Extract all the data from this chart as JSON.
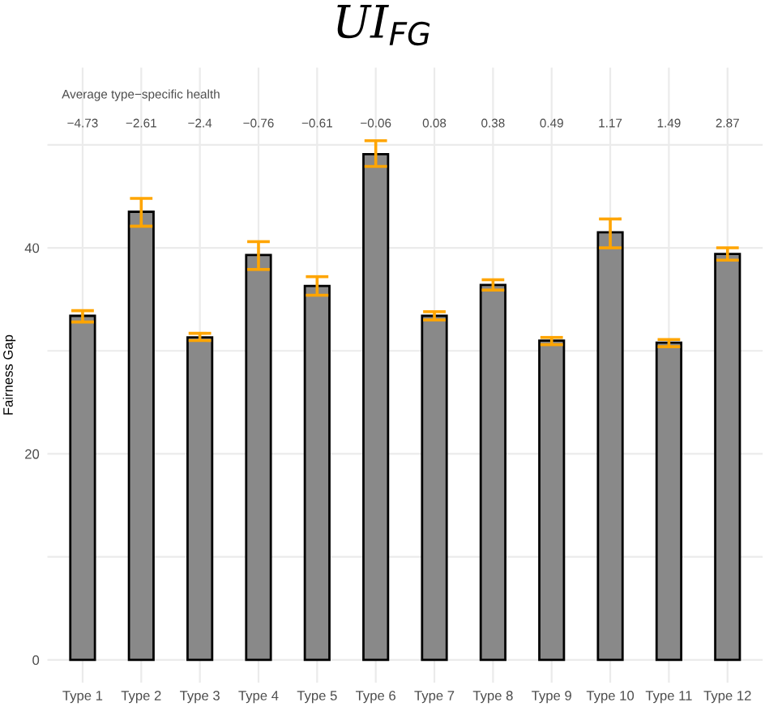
{
  "chart_data": {
    "type": "bar",
    "title": "UI$_{FG}$",
    "ylabel": "Fairness Gap",
    "categories": [
      "Type 1",
      "Type 2",
      "Type 3",
      "Type 4",
      "Type 5",
      "Type 6",
      "Type 7",
      "Type 8",
      "Type 9",
      "Type 10",
      "Type 11",
      "Type 12"
    ],
    "series": [
      {
        "color": "#898989",
        "values": [
          33.4,
          43.5,
          31.3,
          39.3,
          36.3,
          49.1,
          33.4,
          36.4,
          31.0,
          41.5,
          30.8,
          39.4
        ],
        "errors": [
          [
            32.8,
            33.9
          ],
          [
            42.1,
            44.8
          ],
          [
            31.0,
            31.7
          ],
          [
            37.9,
            40.6
          ],
          [
            35.4,
            37.2
          ],
          [
            47.9,
            50.4
          ],
          [
            33.0,
            33.8
          ],
          [
            35.9,
            36.9
          ],
          [
            30.6,
            31.3
          ],
          [
            40.0,
            42.8
          ],
          [
            30.4,
            31.1
          ],
          [
            38.8,
            40.0
          ]
        ]
      }
    ],
    "ylim": [
      -2.2,
      57.5
    ],
    "yticks": [
      0,
      {
        "value": 10,
        "label": null
      },
      20,
      {
        "value": 30,
        "label": null
      },
      40,
      {
        "value": 50,
        "label": null
      }
    ],
    "grid": true,
    "annotations": [
      "Average type−specific health",
      "−4.73",
      "−2.61",
      "−2.4",
      "−0.76",
      "−0.61",
      "−0.06",
      "0.08",
      "0.38",
      "0.49",
      "1.17",
      "1.49",
      "2.87"
    ]
  }
}
